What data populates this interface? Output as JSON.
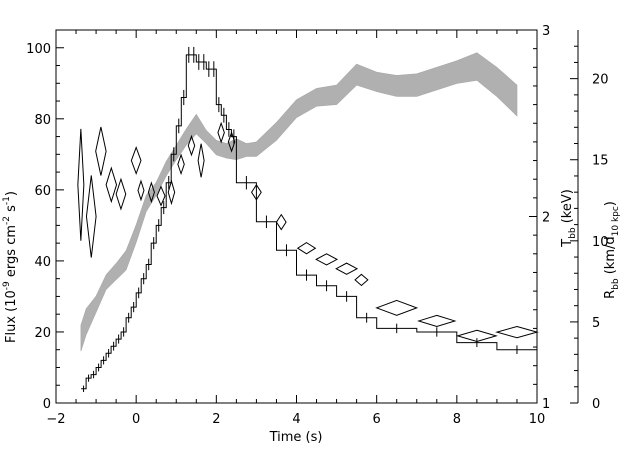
{
  "chart_data": {
    "type": "line",
    "title": "",
    "xlabel": "Time (s)",
    "ylabel_left": {
      "main": "Flux (10",
      "sup1": "-9",
      "mid1": " ergs cm",
      "sup2": "-2",
      "mid2": " s",
      "sup3": "-1",
      "end": ")"
    },
    "ylabel_right_inner": {
      "main": "T",
      "sub": "bb",
      "end": " (keV)"
    },
    "ylabel_right_outer": {
      "main": "R",
      "sub": "bb",
      "mid": " (km/d",
      "sub2": "10 kpc",
      "end": ")"
    },
    "xlim": [
      -2,
      10
    ],
    "ylim_flux": [
      0,
      105
    ],
    "ylim_temp": [
      1,
      3
    ],
    "ylim_radius": [
      0,
      23
    ],
    "x_ticks": [
      "−2",
      "0",
      "2",
      "4",
      "6",
      "8",
      "10"
    ],
    "x_tick_values": [
      -2,
      0,
      2,
      4,
      6,
      8,
      10
    ],
    "flux_ticks": [
      "0",
      "20",
      "40",
      "60",
      "80",
      "100"
    ],
    "flux_tick_values": [
      0,
      20,
      40,
      60,
      80,
      100
    ],
    "temp_ticks": [
      "1",
      "2",
      "3"
    ],
    "temp_tick_values": [
      1,
      2,
      3
    ],
    "radius_ticks": [
      "0",
      "5",
      "10",
      "15",
      "20"
    ],
    "radius_tick_values": [
      0,
      5,
      10,
      15,
      20
    ],
    "series": [
      {
        "name": "Flux",
        "kind": "step",
        "x_edges": [
          -1.375,
          -1.25,
          -1.125,
          -1.0,
          -0.875,
          -0.75,
          -0.625,
          -0.5,
          -0.375,
          -0.25,
          -0.125,
          0.0,
          0.125,
          0.25,
          0.375,
          0.5,
          0.625,
          0.75,
          0.875,
          1.0,
          1.125,
          1.25,
          1.375,
          1.5,
          1.625,
          1.75,
          1.875,
          2.0,
          2.125,
          2.25,
          2.375,
          2.5,
          3.0,
          3.5,
          4.0,
          4.5,
          5.0,
          5.5,
          6.0,
          7.0,
          8.0,
          9.0,
          10.0
        ],
        "values": [
          4,
          7,
          8,
          10,
          12,
          14,
          16,
          18,
          20,
          24,
          27,
          31,
          35,
          39,
          45,
          50,
          55,
          62,
          70,
          78,
          86,
          98,
          98,
          96,
          96,
          94,
          94,
          84,
          81,
          77,
          75,
          62,
          51,
          43,
          36,
          33,
          30,
          24,
          21,
          20,
          17,
          15
        ]
      },
      {
        "name": "Temperature",
        "kind": "diamonds",
        "x": [
          -1.38,
          -1.12,
          -0.88,
          -0.62,
          -0.38,
          0.0,
          0.12,
          0.38,
          0.62,
          0.88,
          1.12,
          1.38,
          1.62,
          2.12,
          2.38,
          3.0,
          3.62,
          4.25,
          4.75,
          5.25,
          5.62,
          6.5,
          7.5,
          8.5,
          9.5
        ],
        "y": [
          2.17,
          2.0,
          2.35,
          2.17,
          2.12,
          2.3,
          2.14,
          2.13,
          2.11,
          2.13,
          2.28,
          2.38,
          2.3,
          2.45,
          2.4,
          2.13,
          1.97,
          1.83,
          1.77,
          1.72,
          1.66,
          1.51,
          1.44,
          1.36,
          1.38
        ],
        "dx": [
          0.06,
          0.12,
          0.13,
          0.13,
          0.12,
          0.12,
          0.06,
          0.06,
          0.1,
          0.08,
          0.08,
          0.08,
          0.06,
          0.08,
          0.08,
          0.12,
          0.12,
          0.22,
          0.26,
          0.26,
          0.16,
          0.5,
          0.45,
          0.48,
          0.5
        ],
        "dy": [
          0.3,
          0.22,
          0.13,
          0.09,
          0.08,
          0.07,
          0.05,
          0.05,
          0.05,
          0.06,
          0.05,
          0.05,
          0.09,
          0.05,
          0.05,
          0.04,
          0.04,
          0.03,
          0.03,
          0.03,
          0.03,
          0.04,
          0.03,
          0.03,
          0.03
        ]
      },
      {
        "name": "Radius",
        "kind": "band",
        "x": [
          -1.38,
          -1.25,
          -1.0,
          -0.75,
          -0.5,
          -0.25,
          0.0,
          0.25,
          0.5,
          0.75,
          1.0,
          1.25,
          1.5,
          1.75,
          2.0,
          2.25,
          2.5,
          2.75,
          3.0,
          3.5,
          4.0,
          4.5,
          5.0,
          5.5,
          6.0,
          6.5,
          7.0,
          7.5,
          8.0,
          8.5,
          9.0,
          9.5
        ],
        "y_lo": [
          3.2,
          4.2,
          5.6,
          7.0,
          7.6,
          8.2,
          9.9,
          11.8,
          12.8,
          14.0,
          15.0,
          15.9,
          16.6,
          16.0,
          15.3,
          15.1,
          15.0,
          15.2,
          15.2,
          16.2,
          17.6,
          18.3,
          18.4,
          19.6,
          19.2,
          18.9,
          18.9,
          19.3,
          19.7,
          19.9,
          18.9,
          17.7
        ],
        "y_hi": [
          4.8,
          5.8,
          6.6,
          7.9,
          8.6,
          9.4,
          11.0,
          12.8,
          13.6,
          14.9,
          15.9,
          16.9,
          17.8,
          16.8,
          16.2,
          16.0,
          16.3,
          16.0,
          16.1,
          17.3,
          18.7,
          19.4,
          19.6,
          20.9,
          20.4,
          20.2,
          20.3,
          20.7,
          21.1,
          21.6,
          20.7,
          19.6
        ]
      }
    ]
  }
}
